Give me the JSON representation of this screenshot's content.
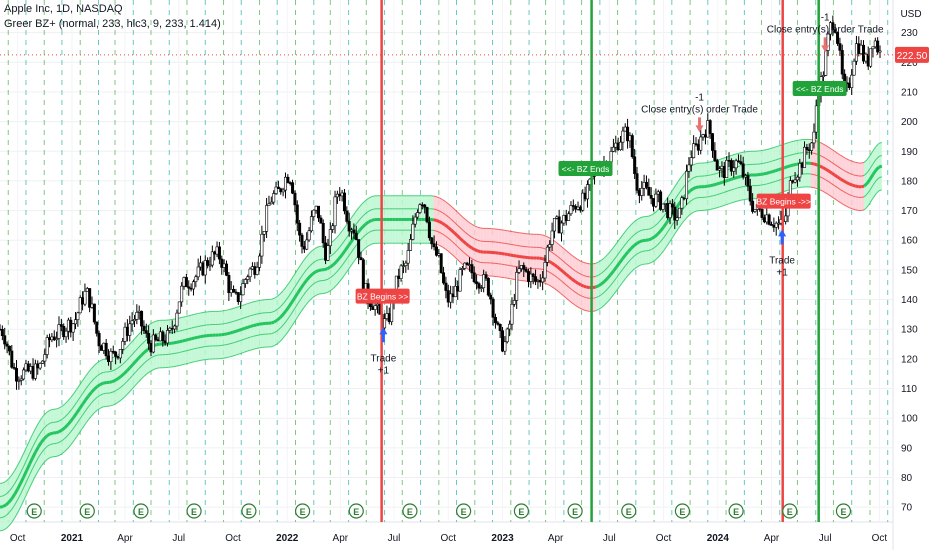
{
  "header": {
    "symbol_line": "Apple Inc, 1D, NASDAQ",
    "indicator_line": "Greer BZ+ (normal, 233, hlc3, 9, 233, 1.414)"
  },
  "price_axis": {
    "currency_button": "USD",
    "last_price_label": "222.50"
  },
  "chart_data": {
    "type": "candlestick",
    "title": "Apple Inc, 1D, NASDAQ",
    "ylim": [
      65,
      240
    ],
    "y_ticks": [
      70,
      80,
      90,
      100,
      110,
      120,
      130,
      140,
      150,
      160,
      170,
      180,
      190,
      200,
      210,
      220,
      230
    ],
    "x_ticks": [
      "Oct",
      "2021",
      "Apr",
      "Jul",
      "Oct",
      "2022",
      "Apr",
      "Jul",
      "Oct",
      "2023",
      "Apr",
      "Jul",
      "Oct",
      "2024",
      "Apr",
      "Jul",
      "Oct"
    ],
    "price_path": [
      [
        "2020-09-01",
        130
      ],
      [
        "2020-10-01",
        115
      ],
      [
        "2020-11-01",
        116
      ],
      [
        "2020-12-01",
        128
      ],
      [
        "2021-01-01",
        132
      ],
      [
        "2021-01-25",
        142
      ],
      [
        "2021-02-20",
        125
      ],
      [
        "2021-03-10",
        121
      ],
      [
        "2021-04-20",
        134
      ],
      [
        "2021-05-15",
        125
      ],
      [
        "2021-06-10",
        127
      ],
      [
        "2021-07-15",
        146
      ],
      [
        "2021-09-05",
        155
      ],
      [
        "2021-10-05",
        140
      ],
      [
        "2021-11-01",
        150
      ],
      [
        "2021-12-10",
        175
      ],
      [
        "2022-01-04",
        182
      ],
      [
        "2022-01-27",
        158
      ],
      [
        "2022-02-20",
        170
      ],
      [
        "2022-03-08",
        156
      ],
      [
        "2022-03-30",
        177
      ],
      [
        "2022-04-20",
        165
      ],
      [
        "2022-05-20",
        140
      ],
      [
        "2022-06-16",
        132
      ],
      [
        "2022-07-15",
        150
      ],
      [
        "2022-08-17",
        174
      ],
      [
        "2022-09-10",
        155
      ],
      [
        "2022-10-01",
        140
      ],
      [
        "2022-11-01",
        150
      ],
      [
        "2022-12-01",
        146
      ],
      [
        "2023-01-03",
        125
      ],
      [
        "2023-02-01",
        150
      ],
      [
        "2023-03-01",
        146
      ],
      [
        "2023-04-01",
        165
      ],
      [
        "2023-05-15",
        173
      ],
      [
        "2023-06-15",
        185
      ],
      [
        "2023-07-31",
        196
      ],
      [
        "2023-08-20",
        178
      ],
      [
        "2023-09-15",
        174
      ],
      [
        "2023-10-25",
        168
      ],
      [
        "2023-11-20",
        190
      ],
      [
        "2023-12-14",
        198
      ],
      [
        "2024-01-05",
        183
      ],
      [
        "2024-02-01",
        186
      ],
      [
        "2024-03-08",
        170
      ],
      [
        "2024-04-19",
        165
      ],
      [
        "2024-05-10",
        183
      ],
      [
        "2024-06-10",
        193
      ],
      [
        "2024-06-20",
        212
      ],
      [
        "2024-07-15",
        234
      ],
      [
        "2024-08-05",
        210
      ],
      [
        "2024-08-25",
        226
      ],
      [
        "2024-09-10",
        220
      ],
      [
        "2024-09-20",
        228
      ],
      [
        "2024-10-05",
        222.5
      ]
    ],
    "band_path": [
      [
        "2020-09-01",
        70
      ],
      [
        "2020-12-01",
        95
      ],
      [
        "2021-03-01",
        112
      ],
      [
        "2021-06-01",
        125
      ],
      [
        "2021-09-01",
        128
      ],
      [
        "2021-12-01",
        132
      ],
      [
        "2022-03-01",
        150
      ],
      [
        "2022-06-01",
        167
      ],
      [
        "2022-09-01",
        167
      ],
      [
        "2022-12-01",
        156
      ],
      [
        "2023-03-01",
        154
      ],
      [
        "2023-06-01",
        144
      ],
      [
        "2023-09-01",
        160
      ],
      [
        "2023-12-01",
        178
      ],
      [
        "2024-03-01",
        182
      ],
      [
        "2024-06-01",
        186
      ],
      [
        "2024-09-01",
        178
      ],
      [
        "2024-10-05",
        185
      ]
    ],
    "band_width": 8,
    "colors": {
      "bull": "#22c55e",
      "bear": "#ef4444",
      "bull_fill": "#bbf7d0",
      "bear_fill": "#fecdd3"
    },
    "signal_lines": [
      {
        "date": "2022-06-10",
        "color": "#ef4444"
      },
      {
        "date": "2023-06-01",
        "color": "#22a33a"
      },
      {
        "date": "2024-04-20",
        "color": "#ef4444"
      },
      {
        "date": "2024-06-20",
        "color": "#22a33a"
      }
    ],
    "labels": [
      {
        "date": "2022-06-10",
        "y": 141,
        "text": "BZ Begins >>",
        "color": "#ef4444"
      },
      {
        "date": "2023-05-20",
        "y": 184,
        "text": "<<- BZ Ends",
        "color": "#22a33a"
      },
      {
        "date": "2024-04-20",
        "y": 173,
        "text": "BZ Begins ->>",
        "color": "#ef4444"
      },
      {
        "date": "2024-06-20",
        "y": 211,
        "text": "<<- BZ Ends",
        "color": "#22a33a"
      }
    ],
    "trade_annotations": [
      {
        "date": "2022-06-13",
        "price": 132,
        "direction": "up",
        "lines": [
          "Trade",
          "+1"
        ]
      },
      {
        "date": "2024-04-19",
        "price": 165,
        "direction": "up",
        "lines": [
          "Trade",
          "+1"
        ]
      },
      {
        "date": "2023-12-01",
        "price": 195,
        "direction": "down",
        "lines": [
          "-1",
          "Close entry(s) order Trade"
        ]
      },
      {
        "date": "2024-07-01",
        "price": 222,
        "direction": "down",
        "lines": [
          "-1",
          "Close entry(s) order Trade"
        ]
      }
    ],
    "earnings_markers": [
      "2020-10-29",
      "2021-01-27",
      "2021-04-28",
      "2021-07-27",
      "2021-10-28",
      "2022-01-27",
      "2022-04-28",
      "2022-07-28",
      "2022-10-27",
      "2023-02-02",
      "2023-05-04",
      "2023-08-03",
      "2023-11-02",
      "2024-02-01",
      "2024-05-02",
      "2024-08-01",
      "2024-10-31"
    ],
    "earnings_marker_label": "E",
    "grid": true,
    "last_price": 222.5
  }
}
